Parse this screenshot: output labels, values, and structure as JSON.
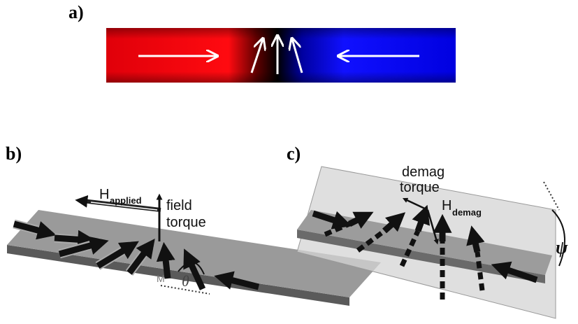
{
  "panel_a": {
    "label": "a)"
  },
  "panel_b": {
    "label": "b)",
    "h_symbol": "H",
    "h_subscript": "applied",
    "torque_line1": "field",
    "torque_line2": "torque",
    "m_label": "M",
    "angle_label": "θ"
  },
  "panel_c": {
    "label": "c)",
    "torque_line1": "demag",
    "torque_line2": "torque",
    "h_symbol": "H",
    "h_subscript": "demag",
    "angle_label": "ψ"
  }
}
